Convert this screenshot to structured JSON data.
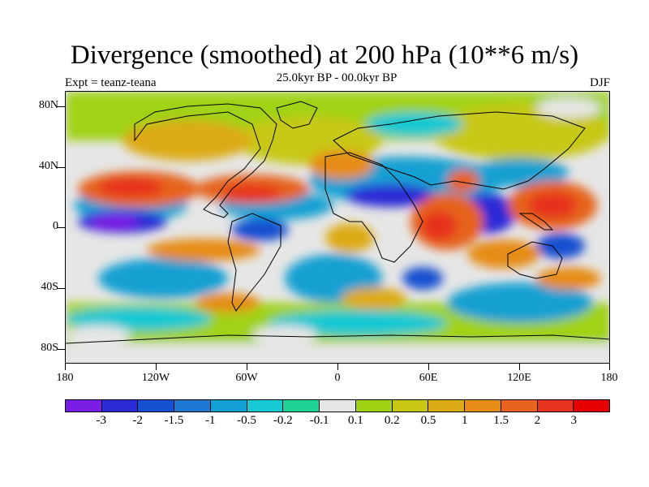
{
  "title": "Divergence (smoothed) at 200 hPa (10**6 m/s)",
  "subtitle": "25.0kyr BP - 00.0kyr BP",
  "experiment": "Expt = teanz-teana",
  "season": "DJF",
  "map": {
    "projection": "cylindrical-equidistant",
    "lon_range": [
      -180,
      180
    ],
    "lat_range": [
      -90,
      90
    ],
    "x_tick_labels": [
      "180",
      "120W",
      "60W",
      "0",
      "60E",
      "120E",
      "180"
    ],
    "y_tick_labels": [
      "80N",
      "40N",
      "0",
      "40S",
      "80S"
    ]
  },
  "colorbar": {
    "labels": [
      "-3",
      "-2",
      "-1.5",
      "-1",
      "-0.5",
      "-0.2",
      "-0.1",
      "0.1",
      "0.2",
      "0.5",
      "1",
      "1.5",
      "2",
      "3"
    ],
    "colors": [
      "#7a1ee6",
      "#2a2ad6",
      "#1450d0",
      "#1e78d2",
      "#14a0d2",
      "#18c8d2",
      "#1cd296",
      "#e6e6e6",
      "#a0d214",
      "#c8c814",
      "#dcaa14",
      "#e68c14",
      "#e6641e",
      "#e6321e",
      "#e60000"
    ]
  }
}
